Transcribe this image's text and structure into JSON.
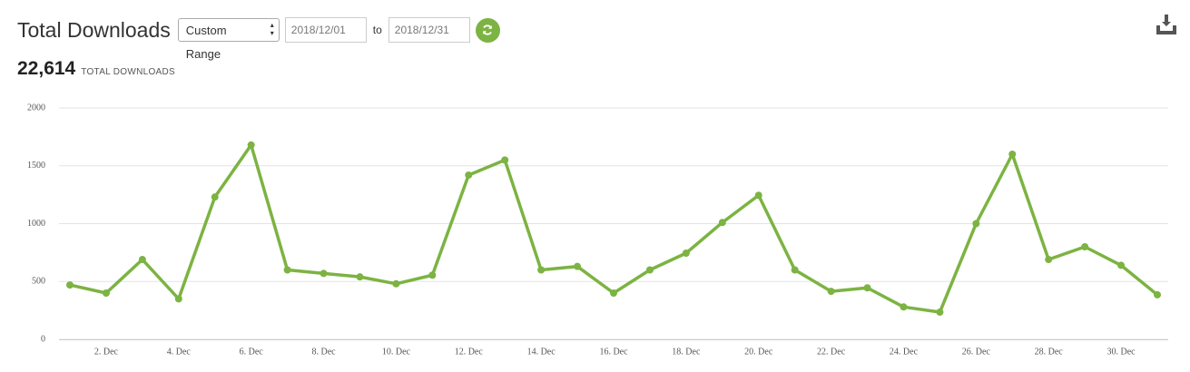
{
  "header": {
    "title": "Total Downloads",
    "range_select": "Custom Range",
    "start_date": "2018/12/01",
    "to": "to",
    "end_date": "2018/12/31"
  },
  "total": {
    "value": "22,614",
    "label": "TOTAL DOWNLOADS"
  },
  "chart_data": {
    "type": "line",
    "categories": [
      null,
      "2. Dec",
      null,
      "4. Dec",
      null,
      "6. Dec",
      null,
      "8. Dec",
      null,
      "10. Dec",
      null,
      "12. Dec",
      null,
      "14. Dec",
      null,
      "16. Dec",
      null,
      "18. Dec",
      null,
      "20. Dec",
      null,
      "22. Dec",
      null,
      "24. Dec",
      null,
      "26. Dec",
      null,
      "28. Dec",
      null,
      "30. Dec",
      null
    ],
    "series": [
      {
        "name": "Downloads",
        "color": "#7cb342",
        "values": [
          470,
          400,
          690,
          350,
          1230,
          1680,
          600,
          570,
          540,
          480,
          555,
          1420,
          1550,
          600,
          630,
          400,
          600,
          745,
          1010,
          1245,
          600,
          415,
          445,
          280,
          235,
          1000,
          1600,
          690,
          800,
          640,
          385
        ]
      }
    ],
    "ylim": [
      0,
      2000
    ],
    "yticks": [
      0,
      500,
      1000,
      1500,
      2000
    ],
    "grid": true
  }
}
